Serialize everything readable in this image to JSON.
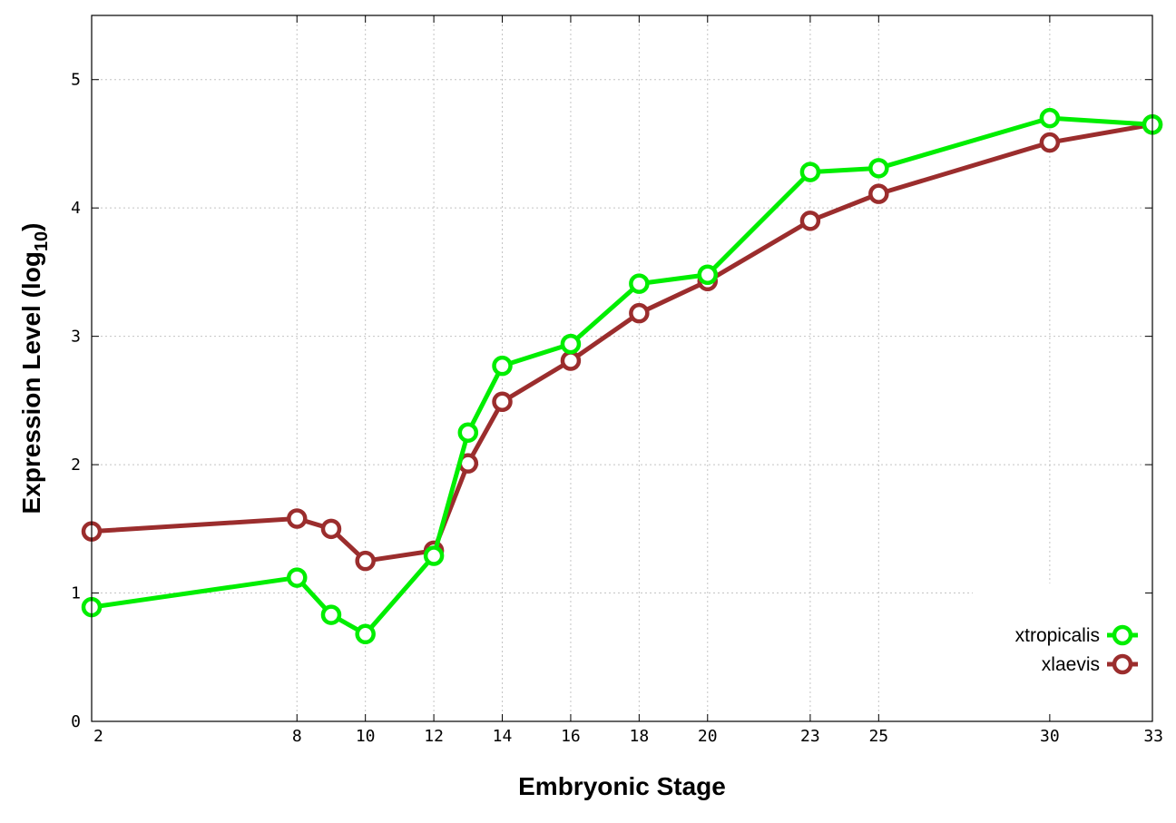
{
  "chart_data": {
    "type": "line",
    "xlabel": "Embryonic Stage",
    "ylabel_main": "Expression Level (log",
    "ylabel_sub": "10",
    "ylabel_end": ")",
    "ylim": [
      0,
      5.5
    ],
    "x_ticks": [
      "2",
      "8",
      "10",
      "12",
      "14",
      "16",
      "18",
      "20",
      "23",
      "25",
      "30",
      "33"
    ],
    "y_ticks": [
      0,
      1,
      2,
      3,
      4,
      5
    ],
    "x_positions": {
      "2": 0,
      "8": 6,
      "9": 7,
      "10": 8,
      "12": 10,
      "13": 11,
      "14": 12,
      "16": 14,
      "18": 16,
      "20": 18,
      "23": 21,
      "25": 23,
      "30": 28,
      "33": 31
    },
    "x_range": [
      0,
      31
    ],
    "grid": true,
    "legend_position": "bottom-right",
    "series": [
      {
        "name": "xtropicalis",
        "color": "#00ee00",
        "x": [
          "2",
          "8",
          "9",
          "10",
          "12",
          "13",
          "14",
          "16",
          "18",
          "20",
          "23",
          "25",
          "30",
          "33"
        ],
        "values": [
          0.89,
          1.12,
          0.83,
          0.68,
          1.29,
          2.25,
          2.77,
          2.94,
          3.41,
          3.48,
          4.28,
          4.31,
          4.7,
          4.65
        ]
      },
      {
        "name": "xlaevis",
        "color": "#9b2d2d",
        "x": [
          "2",
          "8",
          "9",
          "10",
          "12",
          "13",
          "14",
          "16",
          "18",
          "20",
          "23",
          "25",
          "30",
          "33"
        ],
        "values": [
          1.48,
          1.58,
          1.5,
          1.25,
          1.33,
          2.01,
          2.49,
          2.81,
          3.18,
          3.43,
          3.9,
          4.11,
          4.51,
          4.65
        ]
      }
    ]
  }
}
